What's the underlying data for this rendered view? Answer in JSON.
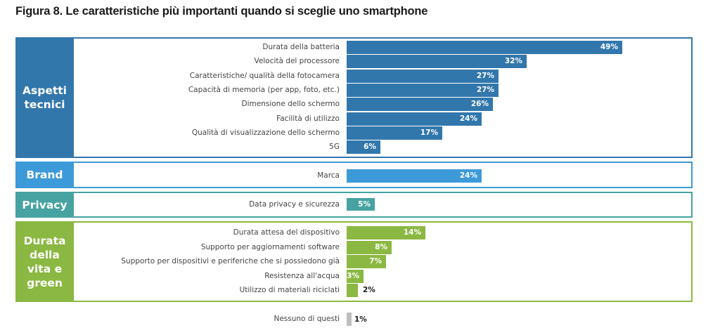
{
  "chart_data": {
    "type": "bar",
    "orientation": "horizontal",
    "title": "Figura 8. Le caratteristiche più importanti quando si sceglie uno smartphone",
    "xlabel": "",
    "ylabel": "",
    "xlim": [
      0,
      50
    ],
    "grid": false,
    "unit": "%",
    "groups": [
      {
        "name": "Aspetti tecnici",
        "name_lines": [
          "Aspetti",
          "tecnici"
        ],
        "color": "#3277ac",
        "categories": [
          "Durata della batteria",
          "Velocità del processore",
          "Caratteristiche/ qualità della fotocamera",
          "Capacità di memoria (per app, foto, etc.)",
          "Dimensione dello schermo",
          "Facilità di utilizzo",
          "Qualità di visualizzazione dello schermo",
          "5G"
        ],
        "values": [
          49,
          32,
          27,
          27,
          26,
          24,
          17,
          6
        ],
        "value_labels": [
          "49%",
          "32%",
          "27%",
          "27%",
          "26%",
          "24%",
          "17%",
          "6%"
        ]
      },
      {
        "name": "Brand",
        "name_lines": [
          "Brand"
        ],
        "color": "#3d9ad8",
        "categories": [
          "Marca"
        ],
        "values": [
          24
        ],
        "value_labels": [
          "24%"
        ]
      },
      {
        "name": "Privacy",
        "name_lines": [
          "Privacy"
        ],
        "color": "#47a3a1",
        "categories": [
          "Data privacy e sicurezza"
        ],
        "values": [
          5
        ],
        "value_labels": [
          "5%"
        ]
      },
      {
        "name": "Durata della vita e green",
        "name_lines": [
          "Durata",
          "della",
          "vita e",
          "green"
        ],
        "color": "#8bb842",
        "categories": [
          "Durata attesa del dispositivo",
          "Supporto per aggiornamenti software",
          "Supporto per dispositivi e periferiche che si possiedono già",
          "Resistenza all'acqua",
          "Utilizzo di materiali riciclati"
        ],
        "values": [
          14,
          8,
          7,
          3,
          2
        ],
        "value_labels": [
          "14%",
          "8%",
          "7%",
          "3%",
          "2%"
        ]
      }
    ],
    "extra": {
      "category": "Nessuno di questi",
      "value": 1,
      "value_label": "1%",
      "color": "#bdbdbd"
    }
  }
}
